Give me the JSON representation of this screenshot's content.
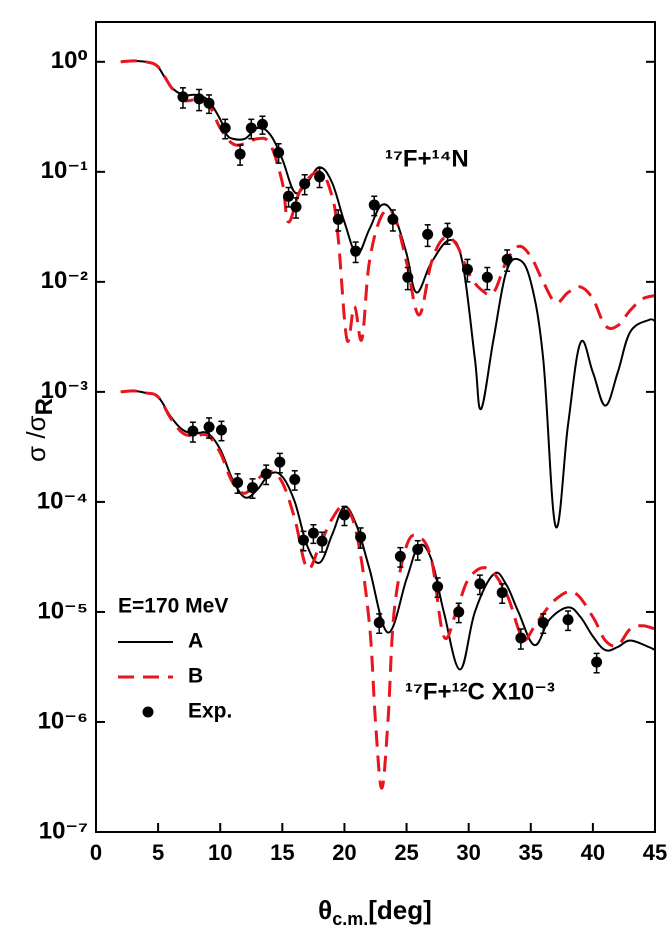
{
  "chart_data": {
    "type": "line",
    "xlabel": {
      "main": "θ",
      "sub": "c.m.",
      "suffix": "[deg]"
    },
    "ylabel": {
      "main": "σ /σ",
      "sub": "R"
    },
    "log_y": true,
    "xlim": [
      0,
      45
    ],
    "ylim": [
      1e-07,
      2.3
    ],
    "xticks": [
      0,
      5,
      10,
      15,
      20,
      25,
      30,
      35,
      40,
      45
    ],
    "yticks": [
      {
        "value": 1,
        "label": "10⁰"
      },
      {
        "value": 0.1,
        "label": "10⁻¹"
      },
      {
        "value": 0.01,
        "label": "10⁻²"
      },
      {
        "value": 0.001,
        "label": "10⁻³"
      },
      {
        "value": 0.0001,
        "label": "10⁻⁴"
      },
      {
        "value": 1e-05,
        "label": "10⁻⁵"
      },
      {
        "value": 1e-06,
        "label": "10⁻⁶"
      },
      {
        "value": 1e-07,
        "label": "10⁻⁷"
      }
    ],
    "legend_title": "E=170 MeV",
    "legend_position": "lower left",
    "annotations": [
      {
        "text": "¹⁷F+¹⁴N"
      },
      {
        "text": "¹⁷F+¹²C X10⁻³"
      }
    ],
    "series": [
      {
        "name": "A",
        "color": "#000000",
        "style": "solid",
        "x": [
          2,
          3,
          4,
          4.5,
          5,
          6,
          7,
          8,
          9,
          10,
          10.5,
          11,
          12,
          13,
          14,
          15,
          16,
          17,
          18,
          19,
          20,
          21,
          22,
          23,
          24,
          25,
          25.8,
          27,
          28.5,
          29.5,
          30.5,
          31,
          32,
          33,
          34,
          35,
          36,
          37,
          38,
          39,
          40,
          41,
          42,
          43,
          44.5,
          45
        ],
        "values": [
          1,
          1.02,
          1,
          0.97,
          0.9,
          0.6,
          0.5,
          0.5,
          0.45,
          0.3,
          0.22,
          0.2,
          0.2,
          0.25,
          0.22,
          0.13,
          0.065,
          0.08,
          0.11,
          0.08,
          0.035,
          0.018,
          0.03,
          0.05,
          0.04,
          0.018,
          0.008,
          0.015,
          0.024,
          0.015,
          0.002,
          0.0007,
          0.003,
          0.012,
          0.016,
          0.01,
          0.002,
          6e-05,
          0.0005,
          0.0028,
          0.0015,
          0.00075,
          0.0015,
          0.0035,
          0.0045,
          0.0044
        ]
      },
      {
        "name": "B",
        "color": "#e8141e",
        "style": "dashed",
        "x": [
          2,
          3,
          4,
          5,
          6,
          7,
          8,
          9,
          10,
          11,
          12,
          13,
          14,
          15,
          15.5,
          16.5,
          18,
          19,
          19.5,
          20.2,
          20.8,
          21.4,
          22,
          23,
          24,
          25,
          26,
          27,
          28,
          29,
          30,
          31,
          32,
          33,
          34,
          35,
          36,
          37,
          38,
          39,
          40,
          41,
          42,
          43,
          44,
          45
        ],
        "values": [
          1,
          1.02,
          1,
          0.9,
          0.6,
          0.45,
          0.45,
          0.42,
          0.25,
          0.18,
          0.18,
          0.2,
          0.18,
          0.08,
          0.035,
          0.07,
          0.1,
          0.06,
          0.025,
          0.003,
          0.006,
          0.003,
          0.015,
          0.04,
          0.04,
          0.015,
          0.005,
          0.015,
          0.025,
          0.022,
          0.012,
          0.0085,
          0.008,
          0.015,
          0.021,
          0.017,
          0.01,
          0.0065,
          0.008,
          0.009,
          0.007,
          0.004,
          0.004,
          0.0055,
          0.007,
          0.0075
        ]
      },
      {
        "name": "Exp.",
        "color": "#000000",
        "style": "points",
        "x": [
          7.0,
          8.3,
          9.1,
          10.4,
          11.6,
          12.5,
          13.4,
          14.7,
          15.5,
          16.1,
          16.8,
          18.0,
          19.5,
          20.9,
          22.4,
          23.9,
          25.1,
          26.7,
          28.3,
          29.9,
          31.5,
          33.1
        ],
        "values": [
          0.48,
          0.46,
          0.42,
          0.25,
          0.145,
          0.25,
          0.27,
          0.15,
          0.06,
          0.048,
          0.078,
          0.09,
          0.037,
          0.019,
          0.05,
          0.037,
          0.011,
          0.027,
          0.028,
          0.013,
          0.011,
          0.016
        ],
        "errors": [
          0.1,
          0.1,
          0.08,
          0.05,
          0.03,
          0.05,
          0.05,
          0.03,
          0.012,
          0.01,
          0.016,
          0.018,
          0.008,
          0.004,
          0.01,
          0.008,
          0.0025,
          0.006,
          0.006,
          0.003,
          0.0025,
          0.0035
        ]
      },
      {
        "name": "A",
        "color": "#000000",
        "style": "solid",
        "x": [
          2,
          3,
          4,
          5,
          6,
          7,
          8,
          9,
          10,
          11,
          12,
          13,
          14,
          15,
          16,
          17,
          18,
          19,
          20,
          21,
          22,
          23.5,
          25,
          26,
          27,
          28,
          29.3,
          30.5,
          32,
          33,
          34,
          35.3,
          36.5,
          38,
          39,
          40,
          41,
          42,
          43,
          44.5,
          45
        ],
        "values": [
          0.001,
          0.00102,
          0.00098,
          0.0009,
          0.0006,
          0.00045,
          0.00042,
          0.00042,
          0.0003,
          0.00016,
          0.00011,
          0.00013,
          0.00018,
          0.00017,
          0.0001,
          4e-05,
          2.8e-05,
          5e-05,
          9e-05,
          6e-05,
          2.5e-05,
          6.5e-06,
          2e-05,
          4e-05,
          3e-05,
          1e-05,
          3e-06,
          1e-05,
          2.2e-05,
          1.8e-05,
          1e-05,
          5e-06,
          8.5e-06,
          1.1e-05,
          9e-06,
          6e-06,
          4.5e-06,
          4.8e-06,
          5.5e-06,
          4.8e-06,
          4.5e-06
        ]
      },
      {
        "name": "B",
        "color": "#e8141e",
        "style": "dashed",
        "x": [
          2,
          3,
          4,
          5,
          6,
          7,
          8,
          9,
          10,
          11,
          12,
          13,
          14,
          15,
          16,
          17,
          18,
          19,
          20,
          21,
          22,
          22.5,
          23,
          23.5,
          24,
          25,
          26,
          27,
          28,
          29,
          30,
          31.5,
          33,
          34,
          34.5,
          35.5,
          37,
          38.5,
          40,
          41,
          42,
          43,
          44,
          45
        ],
        "values": [
          0.001,
          0.00102,
          0.00098,
          0.0009,
          0.00058,
          0.00042,
          0.0004,
          0.0004,
          0.00028,
          0.00015,
          0.00012,
          0.00016,
          0.00019,
          0.00015,
          7e-05,
          2.5e-05,
          4e-05,
          7e-05,
          9e-05,
          5e-05,
          8e-06,
          1e-06,
          2.5e-07,
          1e-06,
          1e-05,
          4e-05,
          4.8e-05,
          3e-05,
          6e-06,
          1e-05,
          2e-05,
          2.5e-05,
          1.5e-05,
          7e-06,
          5.5e-06,
          8e-06,
          1.3e-05,
          1.5e-05,
          9e-06,
          5.5e-06,
          5e-06,
          7e-06,
          7.5e-06,
          7e-06
        ]
      },
      {
        "name": "Exp.",
        "color": "#000000",
        "style": "points",
        "x": [
          7.8,
          9.1,
          10.1,
          11.4,
          12.6,
          13.7,
          14.8,
          16.0,
          16.7,
          17.5,
          18.2,
          20.0,
          21.3,
          22.8,
          24.5,
          25.9,
          27.5,
          29.2,
          30.9,
          32.7,
          34.2,
          36.0,
          38.0,
          40.3
        ],
        "values": [
          0.00044,
          0.00048,
          0.00045,
          0.00015,
          0.000135,
          0.00018,
          0.00023,
          0.00016,
          4.5e-05,
          5.2e-05,
          4.4e-05,
          7.6e-05,
          4.8e-05,
          8e-06,
          3.2e-05,
          3.7e-05,
          1.7e-05,
          1e-05,
          1.8e-05,
          1.5e-05,
          5.8e-06,
          8e-06,
          8.5e-06,
          3.5e-06
        ],
        "errors": [
          9e-05,
          0.0001,
          9e-05,
          3e-05,
          2.7e-05,
          3.6e-05,
          4.6e-05,
          3.2e-05,
          9e-06,
          1e-05,
          9e-06,
          1.5e-05,
          1e-05,
          1.6e-06,
          6.4e-06,
          7.4e-06,
          3.4e-06,
          2e-06,
          3.6e-06,
          3e-06,
          1.2e-06,
          1.6e-06,
          1.7e-06,
          7e-07
        ]
      }
    ]
  }
}
